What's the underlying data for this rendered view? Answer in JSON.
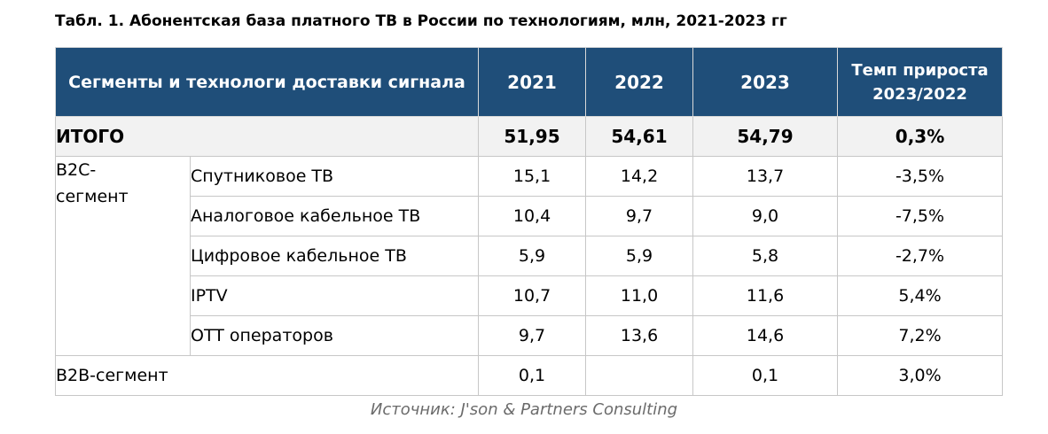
{
  "title": "Табл. 1. Абонентская база платного ТВ в России по технологиям, млн, 2021-2023 гг",
  "header": {
    "segment_col": "Сегменты и технологи доставки сигнала",
    "years": [
      "2021",
      "2022",
      "2023"
    ],
    "growth_line1": "Темп прироста",
    "growth_line2": "2023/2022"
  },
  "total": {
    "label": "ИТОГО",
    "values": [
      "51,95",
      "54,61",
      "54,79"
    ],
    "growth": "0,3%"
  },
  "b2c": {
    "label_line1": "B2C-",
    "label_line2": "сегмент",
    "rows": [
      {
        "tech": "Спутниковое ТВ",
        "values": [
          "15,1",
          "14,2",
          "13,7"
        ],
        "growth": "-3,5%"
      },
      {
        "tech": "Аналоговое кабельное ТВ",
        "values": [
          "10,4",
          "9,7",
          "9,0"
        ],
        "growth": "-7,5%"
      },
      {
        "tech": "Цифровое кабельное ТВ",
        "values": [
          "5,9",
          "5,9",
          "5,8"
        ],
        "growth": "-2,7%"
      },
      {
        "tech": "IPTV",
        "values": [
          "10,7",
          "11,0",
          "11,6"
        ],
        "growth": "5,4%"
      },
      {
        "tech": "OTT операторов",
        "values": [
          "9,7",
          "13,6",
          "14,6"
        ],
        "growth": "7,2%"
      }
    ]
  },
  "b2b": {
    "label": "B2B-сегмент",
    "values": [
      "0,1",
      "",
      "0,1"
    ],
    "growth": "3,0%"
  },
  "source": "Источник: J'son & Partners Consulting",
  "colors": {
    "header_bg": "#1f4e79",
    "header_text": "#ffffff",
    "total_bg": "#f2f2f2",
    "grid": "#c7c7c7"
  }
}
